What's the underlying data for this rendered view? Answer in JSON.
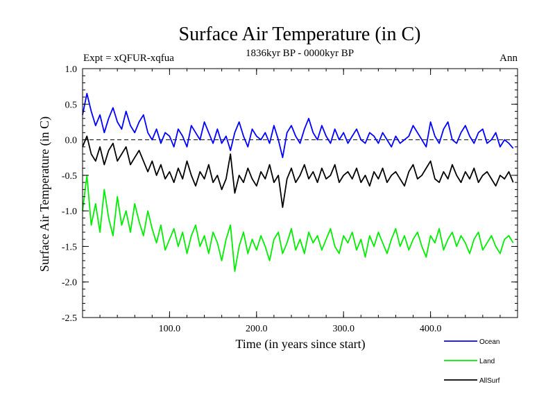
{
  "chart_data": {
    "type": "line",
    "title": "Surface Air Temperature (in C)",
    "subtitle": "1836kyr BP - 0000kyr BP",
    "experiment": "Expt = xQFUR-xqfua",
    "season": "Ann",
    "xlabel": "Time (in years since start)",
    "ylabel": "Surface Air Temperature (in C)",
    "xlim": [
      0,
      500
    ],
    "ylim": [
      -2.5,
      1.0
    ],
    "xticks": [
      100,
      200,
      300,
      400
    ],
    "xtick_labels": [
      "100.0",
      "200.0",
      "300.0",
      "400.0"
    ],
    "yticks": [
      -2.5,
      -2.0,
      -1.5,
      -1.0,
      -0.5,
      0.0,
      0.5,
      1.0
    ],
    "ytick_labels": [
      "-2.5",
      "-2.0",
      "-1.5",
      "-1.0",
      "-0.5",
      "0.0",
      "0.5",
      "1.0"
    ],
    "zero_line": true,
    "legend_position": "bottom-right",
    "series": [
      {
        "name": "Ocean",
        "color": "#0000ff",
        "x": [
          0,
          5,
          10,
          15,
          20,
          25,
          30,
          35,
          40,
          45,
          50,
          55,
          60,
          65,
          70,
          75,
          80,
          85,
          90,
          95,
          100,
          105,
          110,
          115,
          120,
          125,
          130,
          135,
          140,
          145,
          150,
          155,
          160,
          165,
          170,
          175,
          180,
          185,
          190,
          195,
          200,
          205,
          210,
          215,
          220,
          225,
          230,
          235,
          240,
          245,
          250,
          255,
          260,
          265,
          270,
          275,
          280,
          285,
          290,
          295,
          300,
          305,
          310,
          315,
          320,
          325,
          330,
          335,
          340,
          345,
          350,
          355,
          360,
          365,
          370,
          375,
          380,
          385,
          390,
          395,
          400,
          405,
          410,
          415,
          420,
          425,
          430,
          435,
          440,
          445,
          450,
          455,
          460,
          465,
          470,
          475,
          480,
          485,
          490,
          495
        ],
        "values": [
          0.35,
          0.65,
          0.4,
          0.2,
          0.35,
          0.1,
          0.3,
          0.45,
          0.25,
          0.15,
          0.4,
          0.2,
          0.1,
          0.25,
          0.35,
          0.1,
          0.0,
          0.15,
          -0.05,
          0.1,
          0.05,
          -0.1,
          0.15,
          0.05,
          -0.1,
          0.2,
          0.1,
          0.0,
          0.25,
          0.1,
          -0.05,
          0.15,
          -0.05,
          0.05,
          -0.15,
          0.1,
          0.25,
          0.05,
          -0.1,
          0.15,
          0.05,
          0.0,
          0.1,
          -0.05,
          0.2,
          0.0,
          -0.25,
          0.1,
          0.2,
          0.05,
          -0.05,
          0.15,
          0.3,
          0.1,
          0.0,
          0.2,
          0.05,
          -0.05,
          0.15,
          0.0,
          0.1,
          -0.05,
          0.05,
          0.15,
          0.0,
          -0.05,
          0.1,
          0.05,
          -0.05,
          0.1,
          0.0,
          -0.1,
          0.05,
          -0.05,
          0.0,
          0.05,
          0.2,
          0.1,
          0.0,
          -0.1,
          0.25,
          0.05,
          -0.05,
          0.15,
          0.25,
          0.0,
          -0.05,
          0.1,
          0.2,
          0.05,
          -0.05,
          0.1,
          0.15,
          -0.05,
          0.0,
          0.1,
          -0.1,
          0.0,
          -0.05,
          -0.12
        ]
      },
      {
        "name": "Land",
        "color": "#00ee00",
        "x": [
          0,
          5,
          10,
          15,
          20,
          25,
          30,
          35,
          40,
          45,
          50,
          55,
          60,
          65,
          70,
          75,
          80,
          85,
          90,
          95,
          100,
          105,
          110,
          115,
          120,
          125,
          130,
          135,
          140,
          145,
          150,
          155,
          160,
          165,
          170,
          175,
          180,
          185,
          190,
          195,
          200,
          205,
          210,
          215,
          220,
          225,
          230,
          235,
          240,
          245,
          250,
          255,
          260,
          265,
          270,
          275,
          280,
          285,
          290,
          295,
          300,
          305,
          310,
          315,
          320,
          325,
          330,
          335,
          340,
          345,
          350,
          355,
          360,
          365,
          370,
          375,
          380,
          385,
          390,
          395,
          400,
          405,
          410,
          415,
          420,
          425,
          430,
          435,
          440,
          445,
          450,
          455,
          460,
          465,
          470,
          475,
          480,
          485,
          490,
          495
        ],
        "values": [
          -1.0,
          -0.5,
          -1.2,
          -0.9,
          -1.3,
          -0.7,
          -1.1,
          -1.35,
          -0.8,
          -1.2,
          -1.0,
          -1.3,
          -0.9,
          -1.15,
          -1.35,
          -1.0,
          -1.25,
          -1.45,
          -1.2,
          -1.55,
          -1.4,
          -1.25,
          -1.5,
          -1.3,
          -1.6,
          -1.35,
          -1.2,
          -1.5,
          -1.35,
          -1.6,
          -1.3,
          -1.45,
          -1.7,
          -1.4,
          -1.2,
          -1.85,
          -1.5,
          -1.3,
          -1.6,
          -1.4,
          -1.55,
          -1.35,
          -1.5,
          -1.7,
          -1.4,
          -1.3,
          -1.6,
          -1.45,
          -1.25,
          -1.55,
          -1.4,
          -1.6,
          -1.3,
          -1.45,
          -1.35,
          -1.55,
          -1.4,
          -1.25,
          -1.5,
          -1.6,
          -1.35,
          -1.45,
          -1.3,
          -1.55,
          -1.4,
          -1.65,
          -1.35,
          -1.5,
          -1.3,
          -1.45,
          -1.6,
          -1.4,
          -1.25,
          -1.5,
          -1.35,
          -1.55,
          -1.4,
          -1.3,
          -1.5,
          -1.65,
          -1.35,
          -1.45,
          -1.25,
          -1.55,
          -1.4,
          -1.3,
          -1.5,
          -1.35,
          -1.45,
          -1.6,
          -1.4,
          -1.3,
          -1.55,
          -1.45,
          -1.35,
          -1.5,
          -1.6,
          -1.4,
          -1.35,
          -1.45
        ]
      },
      {
        "name": "AllSurf",
        "color": "#000000",
        "x": [
          0,
          5,
          10,
          15,
          20,
          25,
          30,
          35,
          40,
          45,
          50,
          55,
          60,
          65,
          70,
          75,
          80,
          85,
          90,
          95,
          100,
          105,
          110,
          115,
          120,
          125,
          130,
          135,
          140,
          145,
          150,
          155,
          160,
          165,
          170,
          175,
          180,
          185,
          190,
          195,
          200,
          205,
          210,
          215,
          220,
          225,
          230,
          235,
          240,
          245,
          250,
          255,
          260,
          265,
          270,
          275,
          280,
          285,
          290,
          295,
          300,
          305,
          310,
          315,
          320,
          325,
          330,
          335,
          340,
          345,
          350,
          355,
          360,
          365,
          370,
          375,
          380,
          385,
          390,
          395,
          400,
          405,
          410,
          415,
          420,
          425,
          430,
          435,
          440,
          445,
          450,
          455,
          460,
          465,
          470,
          475,
          480,
          485,
          490,
          495
        ],
        "values": [
          -0.1,
          0.05,
          -0.2,
          -0.3,
          -0.1,
          -0.35,
          -0.15,
          -0.05,
          -0.3,
          -0.2,
          -0.1,
          -0.35,
          -0.25,
          -0.15,
          -0.3,
          -0.45,
          -0.3,
          -0.5,
          -0.35,
          -0.55,
          -0.45,
          -0.6,
          -0.4,
          -0.55,
          -0.3,
          -0.5,
          -0.65,
          -0.45,
          -0.55,
          -0.35,
          -0.6,
          -0.5,
          -0.7,
          -0.55,
          -0.2,
          -0.75,
          -0.5,
          -0.6,
          -0.4,
          -0.55,
          -0.65,
          -0.45,
          -0.55,
          -0.35,
          -0.6,
          -0.5,
          -0.95,
          -0.55,
          -0.4,
          -0.6,
          -0.5,
          -0.35,
          -0.55,
          -0.45,
          -0.6,
          -0.4,
          -0.55,
          -0.5,
          -0.35,
          -0.6,
          -0.5,
          -0.45,
          -0.55,
          -0.4,
          -0.6,
          -0.5,
          -0.65,
          -0.45,
          -0.55,
          -0.4,
          -0.6,
          -0.5,
          -0.45,
          -0.55,
          -0.65,
          -0.45,
          -0.35,
          -0.55,
          -0.5,
          -0.4,
          -0.3,
          -0.55,
          -0.6,
          -0.45,
          -0.55,
          -0.35,
          -0.5,
          -0.6,
          -0.45,
          -0.55,
          -0.4,
          -0.6,
          -0.5,
          -0.45,
          -0.55,
          -0.65,
          -0.5,
          -0.55,
          -0.45,
          -0.6
        ]
      }
    ]
  }
}
